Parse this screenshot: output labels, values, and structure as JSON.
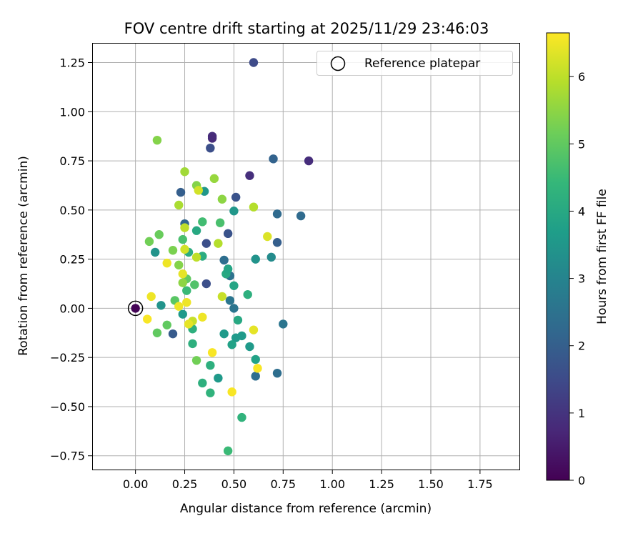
{
  "chart_data": {
    "type": "scatter",
    "title": "FOV centre drift starting at 2025/11/29 23:46:03",
    "xlabel": "Angular distance from reference (arcmin)",
    "ylabel": "Rotation from reference (arcmin)",
    "xlim": [
      -0.22,
      1.95
    ],
    "ylim": [
      -0.82,
      1.35
    ],
    "xticks": [
      "0.00",
      "0.25",
      "0.50",
      "0.75",
      "1.00",
      "1.25",
      "1.50",
      "1.75"
    ],
    "yticks": [
      "−0.75",
      "−0.50",
      "−0.25",
      "0.00",
      "0.25",
      "0.50",
      "0.75",
      "1.00",
      "1.25"
    ],
    "grid": true,
    "legend": {
      "placement": "top-right",
      "entries": [
        "Reference platepar"
      ]
    },
    "reference_point": {
      "x": 0,
      "y": 0,
      "label": "Reference platepar"
    },
    "colorbar": {
      "label": "Hours from first FF file",
      "range": [
        0,
        6.65
      ],
      "ticks": [
        "0",
        "1",
        "2",
        "3",
        "4",
        "5",
        "6"
      ],
      "colormap": [
        "#440154",
        "#482878",
        "#3e4a89",
        "#31688e",
        "#26828e",
        "#1f9e89",
        "#35b779",
        "#6ece58",
        "#b5de2b",
        "#fde725"
      ]
    },
    "points": [
      {
        "x": 0.0,
        "y": 0.0,
        "c": 0.05
      },
      {
        "x": 0.6,
        "y": 1.25,
        "c": 1.5
      },
      {
        "x": 0.39,
        "y": 0.875,
        "c": 0.9
      },
      {
        "x": 0.39,
        "y": 0.865,
        "c": 0.8
      },
      {
        "x": 0.38,
        "y": 0.815,
        "c": 1.6
      },
      {
        "x": 0.88,
        "y": 0.75,
        "c": 0.85
      },
      {
        "x": 0.7,
        "y": 0.76,
        "c": 2.1
      },
      {
        "x": 0.58,
        "y": 0.675,
        "c": 0.9
      },
      {
        "x": 0.23,
        "y": 0.59,
        "c": 2.0
      },
      {
        "x": 0.51,
        "y": 0.565,
        "c": 1.7
      },
      {
        "x": 0.84,
        "y": 0.47,
        "c": 2.3
      },
      {
        "x": 0.72,
        "y": 0.48,
        "c": 2.3
      },
      {
        "x": 0.25,
        "y": 0.43,
        "c": 2.2
      },
      {
        "x": 0.47,
        "y": 0.38,
        "c": 1.7
      },
      {
        "x": 0.72,
        "y": 0.335,
        "c": 2.0
      },
      {
        "x": 0.36,
        "y": 0.33,
        "c": 1.6
      },
      {
        "x": 0.36,
        "y": 0.125,
        "c": 1.6
      },
      {
        "x": 0.19,
        "y": -0.13,
        "c": 1.9
      },
      {
        "x": 0.45,
        "y": 0.245,
        "c": 2.4
      },
      {
        "x": 0.48,
        "y": 0.165,
        "c": 2.5
      },
      {
        "x": 0.48,
        "y": 0.04,
        "c": 2.6
      },
      {
        "x": 0.5,
        "y": 0.0,
        "c": 2.6
      },
      {
        "x": 0.61,
        "y": -0.345,
        "c": 2.4
      },
      {
        "x": 0.72,
        "y": -0.33,
        "c": 2.4
      },
      {
        "x": 0.75,
        "y": -0.08,
        "c": 2.6
      },
      {
        "x": 0.69,
        "y": 0.26,
        "c": 3.2
      },
      {
        "x": 0.61,
        "y": 0.25,
        "c": 3.4
      },
      {
        "x": 0.35,
        "y": 0.595,
        "c": 3.5
      },
      {
        "x": 0.5,
        "y": 0.495,
        "c": 3.5
      },
      {
        "x": 0.1,
        "y": 0.285,
        "c": 3.4
      },
      {
        "x": 0.13,
        "y": 0.015,
        "c": 3.4
      },
      {
        "x": 0.24,
        "y": -0.03,
        "c": 3.6
      },
      {
        "x": 0.45,
        "y": -0.13,
        "c": 3.6
      },
      {
        "x": 0.51,
        "y": -0.15,
        "c": 3.6
      },
      {
        "x": 0.54,
        "y": -0.14,
        "c": 3.6
      },
      {
        "x": 0.58,
        "y": -0.195,
        "c": 3.6
      },
      {
        "x": 0.61,
        "y": -0.26,
        "c": 3.8
      },
      {
        "x": 0.49,
        "y": -0.185,
        "c": 3.8
      },
      {
        "x": 0.52,
        "y": -0.06,
        "c": 4.0
      },
      {
        "x": 0.5,
        "y": 0.115,
        "c": 3.9
      },
      {
        "x": 0.46,
        "y": 0.175,
        "c": 4.0
      },
      {
        "x": 0.47,
        "y": 0.2,
        "c": 3.9
      },
      {
        "x": 0.57,
        "y": 0.07,
        "c": 4.2
      },
      {
        "x": 0.31,
        "y": 0.395,
        "c": 4.0
      },
      {
        "x": 0.34,
        "y": 0.265,
        "c": 4.1
      },
      {
        "x": 0.27,
        "y": 0.285,
        "c": 4.1
      },
      {
        "x": 0.29,
        "y": -0.105,
        "c": 4.2
      },
      {
        "x": 0.29,
        "y": -0.18,
        "c": 4.2
      },
      {
        "x": 0.34,
        "y": -0.38,
        "c": 4.2
      },
      {
        "x": 0.38,
        "y": -0.29,
        "c": 4.2
      },
      {
        "x": 0.42,
        "y": -0.355,
        "c": 3.6
      },
      {
        "x": 0.38,
        "y": -0.43,
        "c": 4.3
      },
      {
        "x": 0.54,
        "y": -0.555,
        "c": 4.3
      },
      {
        "x": 0.47,
        "y": -0.725,
        "c": 4.5
      },
      {
        "x": 0.26,
        "y": 0.09,
        "c": 4.5
      },
      {
        "x": 0.24,
        "y": 0.35,
        "c": 4.7
      },
      {
        "x": 0.34,
        "y": 0.44,
        "c": 4.6
      },
      {
        "x": 0.43,
        "y": 0.435,
        "c": 4.7
      },
      {
        "x": 0.3,
        "y": 0.12,
        "c": 4.8
      },
      {
        "x": 0.26,
        "y": 0.15,
        "c": 5.0
      },
      {
        "x": 0.2,
        "y": 0.04,
        "c": 4.9
      },
      {
        "x": 0.16,
        "y": -0.085,
        "c": 5.0
      },
      {
        "x": 0.11,
        "y": -0.125,
        "c": 5.0
      },
      {
        "x": 0.31,
        "y": -0.265,
        "c": 5.2
      },
      {
        "x": 0.07,
        "y": 0.34,
        "c": 5.2
      },
      {
        "x": 0.12,
        "y": 0.375,
        "c": 5.1
      },
      {
        "x": 0.19,
        "y": 0.295,
        "c": 5.3
      },
      {
        "x": 0.22,
        "y": 0.22,
        "c": 5.4
      },
      {
        "x": 0.24,
        "y": 0.13,
        "c": 5.5
      },
      {
        "x": 0.31,
        "y": 0.625,
        "c": 5.4
      },
      {
        "x": 0.44,
        "y": 0.555,
        "c": 5.5
      },
      {
        "x": 0.4,
        "y": 0.66,
        "c": 5.6
      },
      {
        "x": 0.25,
        "y": 0.695,
        "c": 5.7
      },
      {
        "x": 0.11,
        "y": 0.855,
        "c": 5.4
      },
      {
        "x": 0.22,
        "y": 0.525,
        "c": 5.8
      },
      {
        "x": 0.6,
        "y": 0.515,
        "c": 5.9
      },
      {
        "x": 0.25,
        "y": 0.41,
        "c": 6.0
      },
      {
        "x": 0.42,
        "y": 0.33,
        "c": 5.9
      },
      {
        "x": 0.31,
        "y": 0.26,
        "c": 6.0
      },
      {
        "x": 0.25,
        "y": 0.3,
        "c": 6.2
      },
      {
        "x": 0.44,
        "y": 0.06,
        "c": 6.1
      },
      {
        "x": 0.67,
        "y": 0.365,
        "c": 6.3
      },
      {
        "x": 0.24,
        "y": 0.175,
        "c": 6.4
      },
      {
        "x": 0.16,
        "y": 0.23,
        "c": 6.5
      },
      {
        "x": 0.32,
        "y": 0.6,
        "c": 6.2
      },
      {
        "x": 0.29,
        "y": -0.065,
        "c": 6.1
      },
      {
        "x": 0.6,
        "y": -0.11,
        "c": 6.4
      },
      {
        "x": 0.22,
        "y": 0.01,
        "c": 6.5
      },
      {
        "x": 0.26,
        "y": 0.03,
        "c": 6.5
      },
      {
        "x": 0.27,
        "y": -0.08,
        "c": 6.4
      },
      {
        "x": 0.34,
        "y": -0.045,
        "c": 6.5
      },
      {
        "x": 0.08,
        "y": 0.06,
        "c": 6.5
      },
      {
        "x": 0.06,
        "y": -0.055,
        "c": 6.6
      },
      {
        "x": 0.39,
        "y": -0.225,
        "c": 6.6
      },
      {
        "x": 0.49,
        "y": -0.425,
        "c": 6.6
      },
      {
        "x": 0.62,
        "y": -0.305,
        "c": 6.6
      }
    ]
  }
}
